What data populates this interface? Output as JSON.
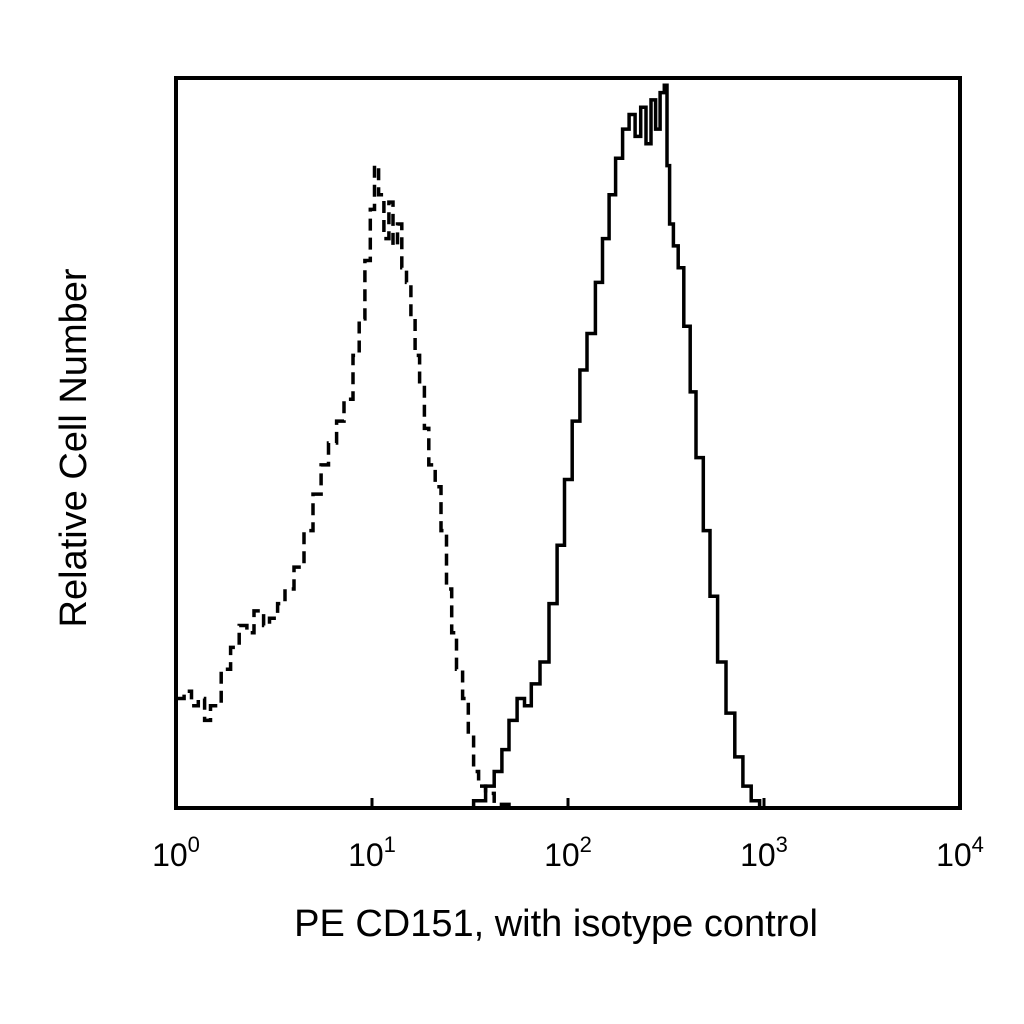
{
  "chart_data": {
    "type": "line",
    "xlabel": "PE CD151, with isotype control",
    "ylabel": "Relative Cell Number",
    "x_scale": "log",
    "xlim": [
      1,
      10000
    ],
    "ylim": [
      0,
      100
    ],
    "x_ticks": [
      {
        "value": 1,
        "base": "10",
        "exp": "0"
      },
      {
        "value": 10,
        "base": "10",
        "exp": "1"
      },
      {
        "value": 100,
        "base": "10",
        "exp": "2"
      },
      {
        "value": 1000,
        "base": "10",
        "exp": "3"
      },
      {
        "value": 10000,
        "base": "10",
        "exp": "4"
      }
    ],
    "grid": false,
    "legend": "none",
    "series": [
      {
        "style": "dashed",
        "color": "#000000",
        "points": [
          [
            1.0,
            15
          ],
          [
            1.1,
            16
          ],
          [
            1.2,
            14
          ],
          [
            1.3,
            15
          ],
          [
            1.4,
            12
          ],
          [
            1.5,
            14
          ],
          [
            1.7,
            19
          ],
          [
            1.9,
            22
          ],
          [
            2.1,
            25
          ],
          [
            2.3,
            24
          ],
          [
            2.5,
            27
          ],
          [
            2.8,
            25
          ],
          [
            3.0,
            26
          ],
          [
            3.3,
            28
          ],
          [
            3.6,
            30
          ],
          [
            4.0,
            33
          ],
          [
            4.5,
            38
          ],
          [
            5.0,
            43
          ],
          [
            5.5,
            47
          ],
          [
            6.0,
            50
          ],
          [
            6.6,
            53
          ],
          [
            7.2,
            56
          ],
          [
            8.0,
            62
          ],
          [
            8.6,
            67
          ],
          [
            9.2,
            75
          ],
          [
            9.8,
            82
          ],
          [
            10.3,
            88
          ],
          [
            10.8,
            84
          ],
          [
            11.5,
            78
          ],
          [
            12.2,
            83
          ],
          [
            12.8,
            77
          ],
          [
            13.5,
            80
          ],
          [
            14.2,
            74
          ],
          [
            15.0,
            72
          ],
          [
            15.8,
            67
          ],
          [
            16.6,
            62
          ],
          [
            17.5,
            58
          ],
          [
            18.5,
            52
          ],
          [
            19.5,
            47
          ],
          [
            21.0,
            44
          ],
          [
            22.5,
            38
          ],
          [
            24.0,
            30
          ],
          [
            25.5,
            24
          ],
          [
            27.0,
            19
          ],
          [
            29.0,
            15
          ],
          [
            31.0,
            10
          ],
          [
            33.0,
            5
          ],
          [
            35.0,
            3
          ],
          [
            38.0,
            2
          ],
          [
            42.0,
            0.5
          ],
          [
            50.0,
            0
          ]
        ]
      },
      {
        "style": "solid",
        "color": "#000000",
        "points": [
          [
            28.0,
            0
          ],
          [
            33.0,
            1
          ],
          [
            38.0,
            3
          ],
          [
            42.0,
            5
          ],
          [
            46.0,
            8
          ],
          [
            50.0,
            12
          ],
          [
            55.0,
            15
          ],
          [
            60.0,
            14
          ],
          [
            65.0,
            17
          ],
          [
            72.0,
            20
          ],
          [
            80.0,
            28
          ],
          [
            88.0,
            36
          ],
          [
            96.0,
            45
          ],
          [
            105.0,
            53
          ],
          [
            115.0,
            60
          ],
          [
            125.0,
            65
          ],
          [
            138.0,
            72
          ],
          [
            150.0,
            78
          ],
          [
            162.0,
            84
          ],
          [
            175.0,
            89
          ],
          [
            190.0,
            93
          ],
          [
            205.0,
            95
          ],
          [
            220.0,
            92
          ],
          [
            235.0,
            96
          ],
          [
            250.0,
            91
          ],
          [
            265.0,
            97
          ],
          [
            280.0,
            93
          ],
          [
            295.0,
            98
          ],
          [
            310.0,
            99
          ],
          [
            320.0,
            88
          ],
          [
            330.0,
            80
          ],
          [
            345.0,
            77
          ],
          [
            365.0,
            74
          ],
          [
            390.0,
            66
          ],
          [
            420.0,
            57
          ],
          [
            450.0,
            48
          ],
          [
            490.0,
            38
          ],
          [
            530.0,
            29
          ],
          [
            580.0,
            20
          ],
          [
            640.0,
            13
          ],
          [
            710.0,
            7
          ],
          [
            780.0,
            3
          ],
          [
            860.0,
            1
          ],
          [
            950.0,
            0
          ]
        ]
      }
    ]
  }
}
